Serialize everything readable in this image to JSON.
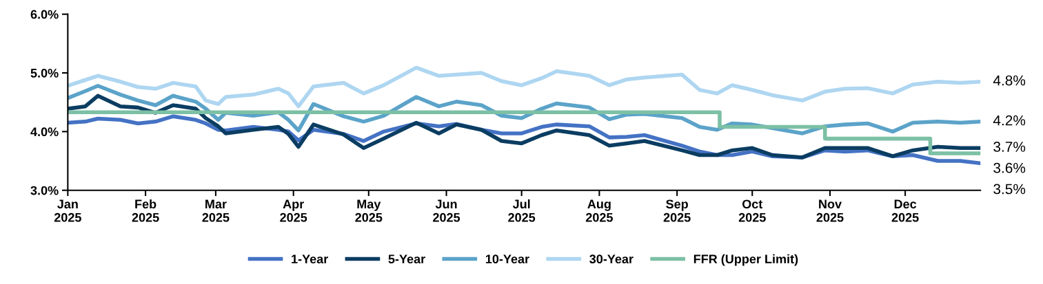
{
  "chart_data": {
    "type": "line",
    "x": [
      "2025-01-01",
      "2025-01-08",
      "2025-01-13",
      "2025-01-22",
      "2025-01-29",
      "2025-02-05",
      "2025-02-12",
      "2025-02-21",
      "2025-02-25",
      "2025-03-02",
      "2025-03-05",
      "2025-03-16",
      "2025-03-26",
      "2025-03-30",
      "2025-04-03",
      "2025-04-09",
      "2025-04-21",
      "2025-04-29",
      "2025-05-07",
      "2025-05-20",
      "2025-05-29",
      "2025-06-05",
      "2025-06-15",
      "2025-06-23",
      "2025-07-01",
      "2025-07-09",
      "2025-07-15",
      "2025-07-28",
      "2025-08-05",
      "2025-08-12",
      "2025-08-19",
      "2025-09-03",
      "2025-09-10",
      "2025-09-17",
      "2025-09-23",
      "2025-10-01",
      "2025-10-09",
      "2025-10-21",
      "2025-10-30",
      "2025-11-07",
      "2025-11-16",
      "2025-11-26",
      "2025-12-04",
      "2025-12-14",
      "2025-12-23",
      "2025-12-31"
    ],
    "series": [
      {
        "name": "1-Year",
        "color": "#4472c4",
        "values": [
          4.15,
          4.17,
          4.22,
          4.2,
          4.14,
          4.17,
          4.26,
          4.2,
          4.14,
          4.03,
          4.02,
          4.08,
          4.03,
          4.0,
          3.85,
          4.03,
          3.96,
          3.84,
          4.0,
          4.14,
          4.09,
          4.13,
          4.03,
          3.97,
          3.97,
          4.08,
          4.12,
          4.09,
          3.9,
          3.91,
          3.94,
          3.76,
          3.66,
          3.6,
          3.6,
          3.66,
          3.58,
          3.56,
          3.68,
          3.66,
          3.68,
          3.58,
          3.6,
          3.5,
          3.5,
          3.46
        ]
      },
      {
        "name": "5-Year",
        "color": "#0b3d62",
        "values": [
          4.39,
          4.43,
          4.61,
          4.43,
          4.41,
          4.32,
          4.45,
          4.39,
          4.23,
          4.09,
          3.97,
          4.03,
          4.08,
          3.96,
          3.74,
          4.12,
          3.95,
          3.72,
          3.88,
          4.15,
          3.97,
          4.12,
          4.03,
          3.84,
          3.8,
          3.94,
          4.02,
          3.94,
          3.76,
          3.8,
          3.84,
          3.68,
          3.6,
          3.6,
          3.68,
          3.72,
          3.6,
          3.56,
          3.72,
          3.72,
          3.72,
          3.58,
          3.68,
          3.74,
          3.72,
          3.72
        ]
      },
      {
        "name": "10-Year",
        "color": "#5ba3c9",
        "values": [
          4.57,
          4.69,
          4.78,
          4.63,
          4.53,
          4.45,
          4.61,
          4.51,
          4.39,
          4.2,
          4.32,
          4.27,
          4.33,
          4.2,
          4.02,
          4.47,
          4.26,
          4.17,
          4.27,
          4.59,
          4.43,
          4.51,
          4.45,
          4.27,
          4.23,
          4.39,
          4.48,
          4.41,
          4.21,
          4.29,
          4.3,
          4.23,
          4.08,
          4.03,
          4.14,
          4.12,
          4.06,
          3.97,
          4.09,
          4.12,
          4.14,
          4.0,
          4.15,
          4.17,
          4.15,
          4.17
        ]
      },
      {
        "name": "30-Year",
        "color": "#aed6f1",
        "values": [
          4.78,
          4.88,
          4.95,
          4.85,
          4.76,
          4.73,
          4.83,
          4.77,
          4.53,
          4.47,
          4.59,
          4.63,
          4.73,
          4.65,
          4.43,
          4.77,
          4.83,
          4.65,
          4.79,
          5.09,
          4.95,
          4.97,
          5.0,
          4.86,
          4.79,
          4.91,
          5.03,
          4.95,
          4.79,
          4.89,
          4.92,
          4.97,
          4.71,
          4.65,
          4.79,
          4.71,
          4.62,
          4.53,
          4.68,
          4.73,
          4.74,
          4.65,
          4.8,
          4.85,
          4.83,
          4.85
        ]
      },
      {
        "name": "FFR (Upper Limit)",
        "color": "#7cc0a5",
        "type": "step",
        "x": [
          "2025-01-01",
          "2025-09-18",
          "2025-10-30",
          "2025-12-11",
          "2025-12-31"
        ],
        "values": [
          4.33,
          4.08,
          3.88,
          3.63,
          3.63
        ]
      }
    ],
    "xlim": [
      "2025-01-01",
      "2025-12-31"
    ],
    "xticks": [
      {
        "value": "2025-01-01",
        "label": "Jan\n2025"
      },
      {
        "value": "2025-02-01",
        "label": "Feb\n2025"
      },
      {
        "value": "2025-03-01",
        "label": "Mar\n2025"
      },
      {
        "value": "2025-04-01",
        "label": "Apr\n2025"
      },
      {
        "value": "2025-05-01",
        "label": "May\n2025"
      },
      {
        "value": "2025-06-01",
        "label": "Jun\n2025"
      },
      {
        "value": "2025-07-01",
        "label": "Jul\n2025"
      },
      {
        "value": "2025-08-01",
        "label": "Aug\n2025"
      },
      {
        "value": "2025-09-01",
        "label": "Sep\n2025"
      },
      {
        "value": "2025-10-01",
        "label": "Oct\n2025"
      },
      {
        "value": "2025-11-01",
        "label": "Nov\n2025"
      },
      {
        "value": "2025-12-01",
        "label": "Dec\n2025"
      }
    ],
    "ylim": [
      3.0,
      6.0
    ],
    "yticks": [
      {
        "value": 3,
        "label": "3.0%"
      },
      {
        "value": 4,
        "label": "4.0%"
      },
      {
        "value": 5,
        "label": "5.0%"
      },
      {
        "value": 6,
        "label": "6.0%"
      }
    ],
    "annotations": [
      {
        "text": "4.8%",
        "x": "2025-12-31",
        "y": 4.85
      },
      {
        "text": "4.2%",
        "x": "2025-12-31",
        "y": 4.17
      },
      {
        "text": "3.7%",
        "x": "2025-12-31",
        "y": 3.72
      },
      {
        "text": "3.6%",
        "x": "2025-12-31",
        "y": 3.63
      },
      {
        "text": "3.5%",
        "x": "2025-12-31",
        "y": 3.46
      }
    ],
    "grid": false,
    "legend": "bottom",
    "marker": "none",
    "line_style": "solid"
  }
}
